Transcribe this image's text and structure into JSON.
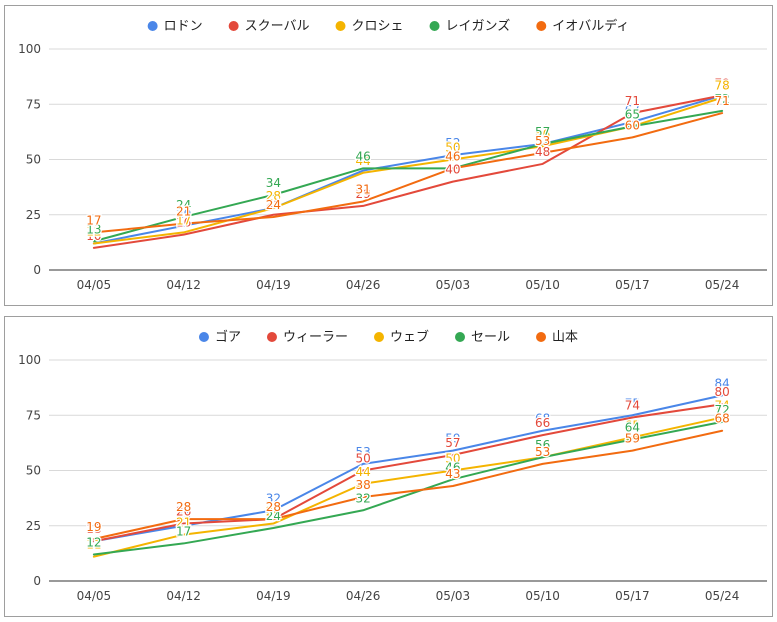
{
  "chart_data": [
    {
      "type": "line",
      "categories": [
        "04/05",
        "04/12",
        "04/19",
        "04/26",
        "05/03",
        "05/10",
        "05/17",
        "05/24"
      ],
      "ylim": [
        0,
        100
      ],
      "yticks": [
        0,
        25,
        50,
        75,
        100
      ],
      "grid": true,
      "legend_position": "top",
      "data_labels": true,
      "series": [
        {
          "name": "ロドン",
          "color": "#4a86e8",
          "values": [
            12,
            20,
            28,
            45,
            52,
            57,
            67,
            79
          ]
        },
        {
          "name": "スクーバル",
          "color": "#e3493b",
          "values": [
            10,
            16,
            25,
            29,
            40,
            48,
            71,
            79
          ]
        },
        {
          "name": "クロシェ",
          "color": "#f4b400",
          "values": [
            12,
            17,
            28,
            44,
            50,
            56,
            65,
            78
          ]
        },
        {
          "name": "レイガンズ",
          "color": "#34a853",
          "values": [
            13,
            24,
            34,
            46,
            46,
            57,
            65,
            72
          ]
        },
        {
          "name": "イオバルディ",
          "color": "#f26b10",
          "values": [
            17,
            21,
            24,
            31,
            46,
            53,
            60,
            71
          ]
        }
      ]
    },
    {
      "type": "line",
      "categories": [
        "04/05",
        "04/12",
        "04/19",
        "04/26",
        "05/03",
        "05/10",
        "05/17",
        "05/24"
      ],
      "ylim": [
        0,
        100
      ],
      "yticks": [
        0,
        25,
        50,
        75,
        100
      ],
      "grid": true,
      "legend_position": "top",
      "data_labels": true,
      "series": [
        {
          "name": "ゴア",
          "color": "#4a86e8",
          "values": [
            18,
            25,
            32,
            53,
            59,
            68,
            75,
            84
          ]
        },
        {
          "name": "ウィーラー",
          "color": "#e3493b",
          "values": [
            18,
            26,
            28,
            50,
            57,
            66,
            74,
            80
          ]
        },
        {
          "name": "ウェブ",
          "color": "#f4b400",
          "values": [
            11,
            21,
            26,
            44,
            50,
            56,
            65,
            74
          ]
        },
        {
          "name": "セール",
          "color": "#34a853",
          "values": [
            12,
            17,
            24,
            32,
            46,
            56,
            64,
            72
          ]
        },
        {
          "name": "山本",
          "color": "#f26b10",
          "values": [
            19,
            28,
            28,
            38,
            43,
            53,
            59,
            68
          ]
        }
      ]
    }
  ]
}
